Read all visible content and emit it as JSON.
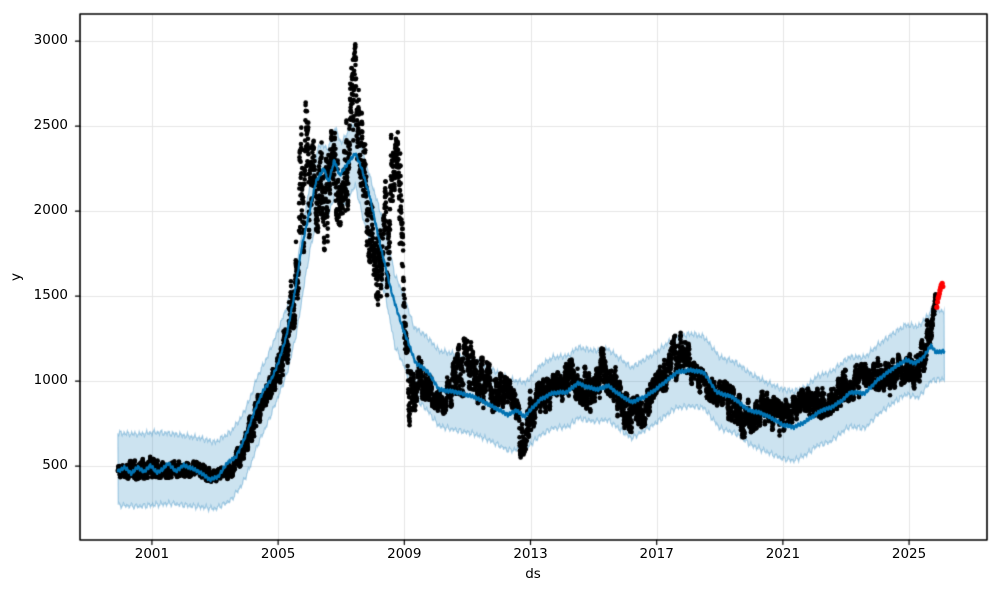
{
  "chart_data": {
    "type": "scatter",
    "title": "",
    "xlabel": "ds",
    "ylabel": "y",
    "legend": "none",
    "grid": "major-only",
    "x_tick_labels": [
      "2001",
      "2005",
      "2009",
      "2013",
      "2017",
      "2021",
      "2025"
    ],
    "x_tick_values": [
      2001,
      2005,
      2009,
      2013,
      2017,
      2021,
      2025
    ],
    "y_tick_labels": [
      "500",
      "1000",
      "1500",
      "2000",
      "2500",
      "3000"
    ],
    "y_tick_values": [
      500,
      1000,
      1500,
      2000,
      2500,
      3000
    ],
    "x_range": [
      1998.72,
      2027.47
    ],
    "y_range": [
      65,
      3160
    ],
    "colors": {
      "observed": "#000000",
      "trend_line": "#0072B2",
      "band_fill": "#0072B2",
      "band_alpha": 0.2,
      "anomaly": "#ff0000",
      "grid": "#e6e6e6",
      "spine": "#000000"
    },
    "style": {
      "marker_radius": 2.3,
      "anomaly_radius": 2.6,
      "line_width": 2.2,
      "points_per_year": 280,
      "seed": 11
    },
    "trend": {
      "x": [
        1999.92,
        2000.15,
        2000.35,
        2000.55,
        2000.75,
        2000.95,
        2001.15,
        2001.35,
        2001.52,
        2001.75,
        2002.0,
        2002.25,
        2002.5,
        2002.85,
        2003.1,
        2003.4,
        2003.65,
        2003.85,
        2004.05,
        2004.3,
        2004.55,
        2004.8,
        2005.0,
        2005.25,
        2005.5,
        2005.75,
        2006.0,
        2006.2,
        2006.45,
        2006.6,
        2006.78,
        2006.95,
        2007.2,
        2007.45,
        2007.65,
        2007.9,
        2008.25,
        2008.6,
        2008.95,
        2009.1,
        2009.35,
        2009.75,
        2010.1,
        2010.65,
        2011.25,
        2011.7,
        2012.3,
        2012.55,
        2012.8,
        2013.3,
        2013.7,
        2014.15,
        2014.5,
        2014.8,
        2015.15,
        2015.45,
        2015.75,
        2016.2,
        2016.6,
        2016.95,
        2017.3,
        2017.65,
        2018.1,
        2018.5,
        2018.9,
        2019.4,
        2019.9,
        2020.3,
        2020.65,
        2021.0,
        2021.35,
        2021.65,
        2021.95,
        2022.25,
        2022.5,
        2022.85,
        2023.15,
        2023.6,
        2024.0,
        2024.5,
        2024.9,
        2025.2,
        2025.45,
        2025.7,
        2025.85,
        2026.12
      ],
      "y": [
        470,
        492,
        455,
        495,
        465,
        505,
        462,
        482,
        518,
        468,
        505,
        488,
        466,
        420,
        438,
        522,
        550,
        625,
        715,
        850,
        950,
        1015,
        1105,
        1255,
        1490,
        1790,
        2000,
        2175,
        2250,
        2170,
        2300,
        2210,
        2280,
        2340,
        2250,
        2090,
        1790,
        1520,
        1310,
        1240,
        1110,
        1055,
        950,
        935,
        905,
        860,
        800,
        830,
        790,
        890,
        930,
        935,
        988,
        965,
        950,
        975,
        930,
        876,
        905,
        948,
        1000,
        1053,
        1065,
        1050,
        935,
        906,
        830,
        812,
        782,
        742,
        729,
        755,
        792,
        830,
        842,
        882,
        935,
        928,
        1006,
        1076,
        1124,
        1105,
        1140,
        1210,
        1168,
        1178
      ]
    },
    "uncertainty_band": {
      "x": [
        1999.92,
        2000.6,
        2001.1,
        2001.6,
        2002.1,
        2002.6,
        2003.0,
        2003.5,
        2003.85,
        2004.1,
        2004.35,
        2004.65,
        2005.0,
        2005.3,
        2005.6,
        2005.85,
        2006.05,
        2006.3,
        2006.6,
        2006.8,
        2007.0,
        2007.25,
        2007.45,
        2007.7,
        2008.0,
        2008.4,
        2008.7,
        2009.0,
        2009.3,
        2009.7,
        2010.1,
        2010.6,
        2011.2,
        2011.7,
        2012.3,
        2012.85,
        2013.3,
        2013.7,
        2014.2,
        2014.5,
        2015.0,
        2015.45,
        2016.2,
        2016.9,
        2017.6,
        2018.1,
        2018.5,
        2019.0,
        2019.5,
        2020.0,
        2020.5,
        2021.0,
        2021.35,
        2021.7,
        2022.1,
        2022.5,
        2023.1,
        2023.6,
        2024.0,
        2024.5,
        2024.9,
        2025.3,
        2025.7,
        2026.12
      ],
      "lower": [
        270,
        262,
        272,
        280,
        268,
        258,
        248,
        298,
        388,
        490,
        625,
        745,
        905,
        1055,
        1295,
        1595,
        1805,
        1990,
        1975,
        2100,
        2010,
        2090,
        2150,
        1950,
        1755,
        1500,
        1205,
        1085,
        905,
        835,
        735,
        712,
        690,
        650,
        592,
        600,
        680,
        722,
        732,
        782,
        762,
        772,
        662,
        742,
        842,
        852,
        842,
        722,
        692,
        622,
        582,
        542,
        532,
        562,
        622,
        642,
        732,
        722,
        802,
        872,
        922,
        902,
        1002,
        1012
      ],
      "upper": [
        695,
        688,
        700,
        692,
        678,
        662,
        640,
        702,
        792,
        895,
        1030,
        1140,
        1300,
        1450,
        1695,
        1995,
        2195,
        2395,
        2370,
        2495,
        2400,
        2480,
        2530,
        2340,
        2145,
        1900,
        1625,
        1500,
        1320,
        1265,
        1180,
        1160,
        1130,
        1080,
        1012,
        992,
        1090,
        1140,
        1150,
        1200,
        1180,
        1190,
        1080,
        1160,
        1262,
        1280,
        1262,
        1142,
        1112,
        1042,
        992,
        952,
        942,
        962,
        1032,
        1052,
        1142,
        1142,
        1212,
        1282,
        1332,
        1322,
        1412,
        1415
      ]
    },
    "observed_envelope": {
      "x": [
        1999.92,
        2000.5,
        2001.0,
        2001.5,
        2002.0,
        2002.5,
        2003.0,
        2003.5,
        2003.8,
        2004.05,
        2004.3,
        2004.6,
        2004.9,
        2005.1,
        2005.3,
        2005.5,
        2005.7,
        2005.85,
        2006.0,
        2006.15,
        2006.3,
        2006.5,
        2006.65,
        2006.8,
        2007.0,
        2007.2,
        2007.4,
        2007.55,
        2007.7,
        2007.9,
        2008.1,
        2008.3,
        2008.45,
        2008.6,
        2008.75,
        2008.85,
        2008.95,
        2009.05,
        2009.2,
        2009.4,
        2009.6,
        2009.9,
        2010.2,
        2010.5,
        2010.8,
        2011.05,
        2011.4,
        2011.7,
        2012.0,
        2012.4,
        2012.55,
        2012.7,
        2012.85,
        2013.0,
        2013.3,
        2013.8,
        2014.1,
        2014.4,
        2014.7,
        2015.0,
        2015.3,
        2015.6,
        2015.9,
        2016.3,
        2016.7,
        2017.0,
        2017.3,
        2017.6,
        2017.9,
        2018.2,
        2018.6,
        2018.9,
        2019.2,
        2019.5,
        2019.7,
        2020.0,
        2020.4,
        2020.9,
        2021.2,
        2021.6,
        2021.9,
        2022.2,
        2022.5,
        2022.8,
        2023.1,
        2023.4,
        2023.7,
        2024.0,
        2024.3,
        2024.6,
        2024.9,
        2025.1,
        2025.35,
        2025.55,
        2025.7,
        2025.8,
        2025.86
      ],
      "lower": [
        420,
        422,
        432,
        430,
        440,
        430,
        398,
        430,
        500,
        600,
        700,
        850,
        950,
        1000,
        1090,
        1290,
        1600,
        1800,
        1850,
        1900,
        1850,
        1750,
        1900,
        2000,
        1850,
        2000,
        2250,
        2300,
        1900,
        1700,
        1500,
        1320,
        1500,
        1900,
        2250,
        1700,
        1100,
        800,
        720,
        850,
        900,
        850,
        800,
        850,
        900,
        950,
        850,
        800,
        850,
        800,
        700,
        530,
        600,
        700,
        800,
        850,
        850,
        900,
        850,
        800,
        950,
        900,
        700,
        700,
        750,
        850,
        950,
        1000,
        1050,
        950,
        900,
        850,
        800,
        700,
        660,
        700,
        750,
        670,
        750,
        780,
        800,
        780,
        800,
        850,
        880,
        900,
        950,
        950,
        900,
        950,
        1000,
        930,
        1000,
        1100,
        1250,
        1350,
        1400
      ],
      "upper": [
        520,
        540,
        560,
        545,
        540,
        520,
        470,
        520,
        640,
        760,
        900,
        1000,
        1100,
        1200,
        1480,
        1700,
        2450,
        2670,
        2500,
        2400,
        2480,
        2300,
        2480,
        2480,
        2300,
        2600,
        3000,
        2950,
        2500,
        2200,
        2000,
        1840,
        2350,
        2500,
        2500,
        2450,
        1900,
        1300,
        1050,
        1150,
        1150,
        1000,
        950,
        1100,
        1250,
        1250,
        1150,
        1100,
        1050,
        1000,
        900,
        800,
        850,
        950,
        1000,
        1050,
        1100,
        1150,
        1100,
        1000,
        1230,
        1150,
        950,
        900,
        950,
        1050,
        1150,
        1280,
        1300,
        1100,
        1050,
        1000,
        1000,
        950,
        900,
        900,
        950,
        880,
        950,
        950,
        980,
        950,
        1000,
        1050,
        1080,
        1100,
        1100,
        1150,
        1100,
        1150,
        1180,
        1150,
        1200,
        1350,
        1430,
        1500,
        1520
      ]
    },
    "anomalies": {
      "x": [
        2025.88,
        2025.9,
        2025.92,
        2025.94,
        2025.96,
        2025.98,
        2026.0,
        2026.02,
        2026.05,
        2026.07
      ],
      "y": [
        1435,
        1465,
        1488,
        1500,
        1515,
        1535,
        1550,
        1565,
        1575,
        1556
      ]
    }
  }
}
